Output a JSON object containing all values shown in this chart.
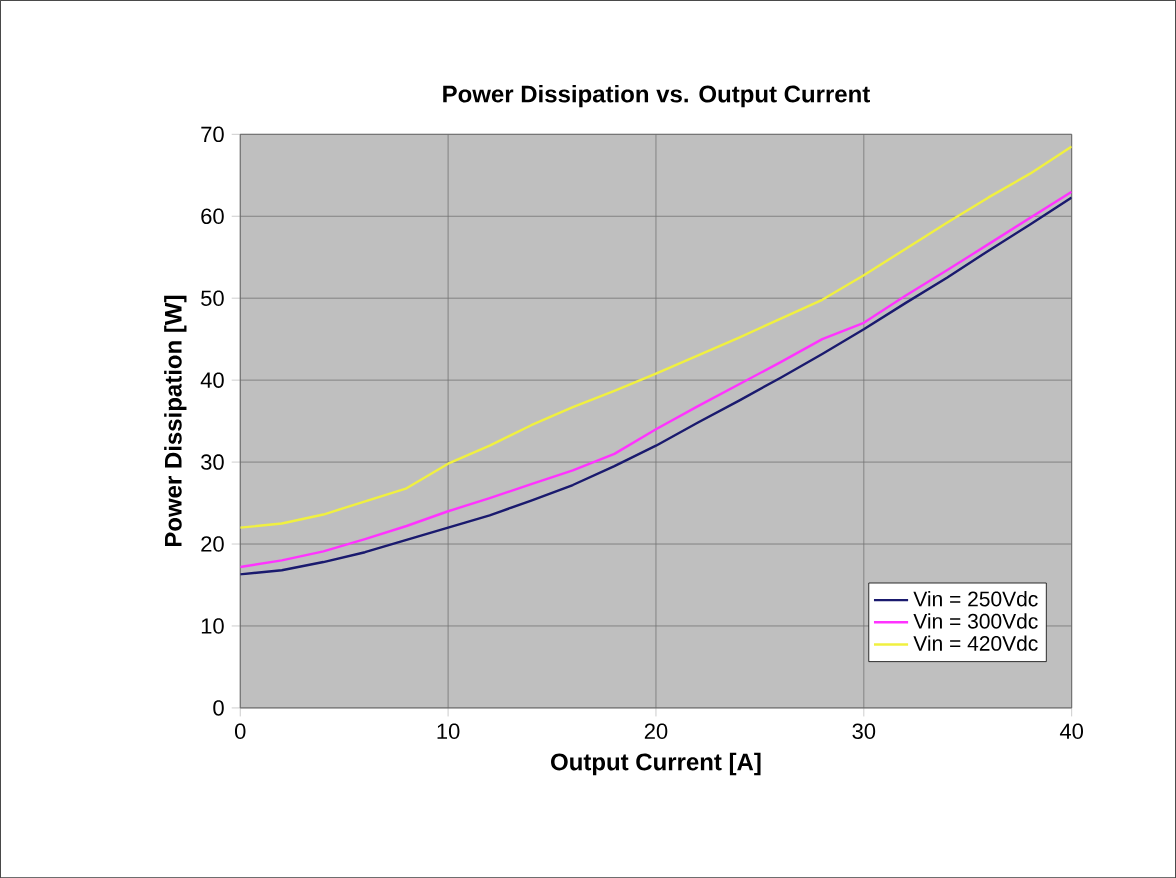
{
  "chart_data": {
    "type": "line",
    "title": "Power Dissipation vs. Output Current",
    "xlabel": "Output Current [A]",
    "ylabel": "Power Dissipation [W]",
    "x": [
      0,
      2,
      4,
      6,
      8,
      10,
      12,
      14,
      16,
      18,
      20,
      22,
      24,
      26,
      28,
      30,
      32,
      34,
      36,
      38,
      40
    ],
    "series": [
      {
        "name": "Vin = 250Vdc",
        "color": "#1a1a6e",
        "values": [
          16.3,
          16.8,
          17.8,
          19,
          20.5,
          22,
          23.5,
          25.3,
          27.2,
          29.5,
          32,
          34.8,
          37.5,
          40.3,
          43.2,
          46.2,
          49.4,
          52.5,
          55.8,
          59,
          62.3
        ]
      },
      {
        "name": "Vin = 300Vdc",
        "color": "#ff33ff",
        "values": [
          17.2,
          18,
          19.1,
          20.6,
          22.2,
          24,
          25.6,
          27.3,
          29,
          31,
          34,
          36.8,
          39.5,
          42.2,
          45,
          47,
          50.3,
          53.4,
          56.6,
          59.8,
          63
        ]
      },
      {
        "name": "Vin = 420Vdc",
        "color": "#f0f040",
        "values": [
          22,
          22.5,
          23.6,
          25.2,
          26.8,
          29.8,
          32,
          34.5,
          36.7,
          38.7,
          40.8,
          43,
          45.2,
          47.5,
          49.8,
          52.8,
          56,
          59.2,
          62.3,
          65.2,
          68.5
        ]
      }
    ],
    "xlim": [
      0,
      40
    ],
    "xticks": [
      0,
      10,
      20,
      30,
      40
    ],
    "ylim": [
      0,
      70
    ],
    "yticks": [
      0,
      10,
      20,
      30,
      40,
      50,
      60,
      70
    ],
    "grid": true,
    "legend": "bottom right",
    "marker": "none",
    "line_style": "solid"
  }
}
